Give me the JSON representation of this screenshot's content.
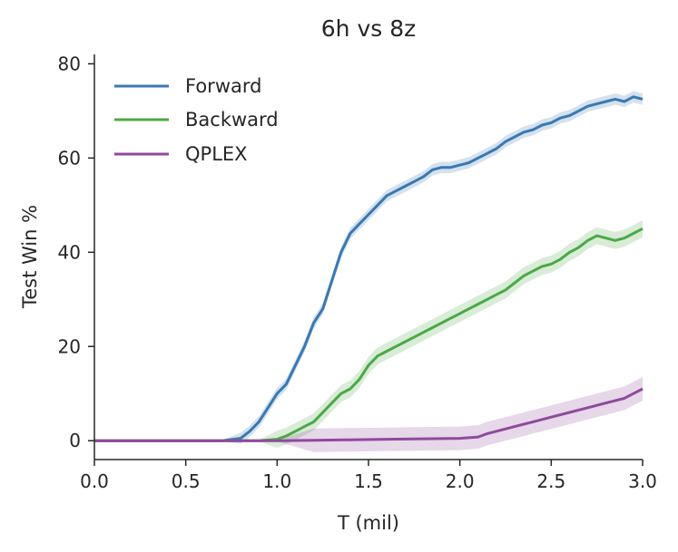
{
  "chart_data": {
    "type": "line",
    "title": "6h vs 8z",
    "xlabel": "T (mil)",
    "ylabel": "Test Win %",
    "xlim": [
      0,
      3.0
    ],
    "ylim": [
      -4,
      82
    ],
    "xticks": [
      0,
      0.5,
      1.0,
      1.5,
      2.0,
      2.5,
      3.0
    ],
    "xtick_labels": [
      "0.0",
      "0.5",
      "1.0",
      "1.5",
      "2.0",
      "2.5",
      "3.0"
    ],
    "yticks": [
      0,
      20,
      40,
      60,
      80
    ],
    "ytick_labels": [
      "0",
      "20",
      "40",
      "60",
      "80"
    ],
    "grid": false,
    "legend_position": "top-left",
    "series": [
      {
        "name": "Forward",
        "color": "#3a78b0",
        "x": [
          0,
          0.5,
          0.7,
          0.8,
          0.85,
          0.9,
          0.95,
          1.0,
          1.05,
          1.1,
          1.15,
          1.2,
          1.25,
          1.3,
          1.35,
          1.4,
          1.45,
          1.5,
          1.55,
          1.6,
          1.65,
          1.7,
          1.75,
          1.8,
          1.85,
          1.9,
          1.95,
          2.0,
          2.05,
          2.1,
          2.15,
          2.2,
          2.25,
          2.3,
          2.35,
          2.4,
          2.45,
          2.5,
          2.55,
          2.6,
          2.65,
          2.7,
          2.75,
          2.8,
          2.85,
          2.9,
          2.95,
          3.0
        ],
        "values": [
          0,
          0,
          0,
          0.5,
          2,
          4,
          7,
          10,
          12,
          16,
          20,
          25,
          28,
          34,
          40,
          44,
          46,
          48,
          50,
          52,
          53,
          54,
          55,
          56,
          57.5,
          58,
          58,
          58.5,
          59,
          60,
          61,
          62,
          63.5,
          64.5,
          65.5,
          66,
          67,
          67.5,
          68.5,
          69,
          70,
          71,
          71.5,
          72,
          72.5,
          72,
          73,
          72.5
        ],
        "band": 1.2
      },
      {
        "name": "Backward",
        "color": "#4ca847",
        "x": [
          0,
          0.9,
          1.0,
          1.05,
          1.1,
          1.15,
          1.2,
          1.25,
          1.3,
          1.35,
          1.4,
          1.45,
          1.5,
          1.55,
          1.6,
          1.65,
          1.7,
          1.75,
          1.8,
          1.85,
          1.9,
          1.95,
          2.0,
          2.05,
          2.1,
          2.15,
          2.2,
          2.25,
          2.3,
          2.35,
          2.4,
          2.45,
          2.5,
          2.55,
          2.6,
          2.65,
          2.7,
          2.75,
          2.8,
          2.85,
          2.9,
          2.95,
          3.0
        ],
        "values": [
          0,
          0,
          0.3,
          1,
          2,
          3,
          4,
          6,
          8,
          10,
          11,
          13,
          16,
          18,
          19,
          20,
          21,
          22,
          23,
          24,
          25,
          26,
          27,
          28,
          29,
          30,
          31,
          32,
          33.5,
          35,
          36,
          37,
          37.5,
          38.5,
          40,
          41,
          42.5,
          43.5,
          43,
          42.5,
          43,
          44,
          45
        ],
        "band": 1.8
      },
      {
        "name": "QPLEX",
        "color": "#8f4a9c",
        "x": [
          0,
          0.5,
          1.0,
          1.2,
          1.4,
          1.6,
          1.8,
          2.0,
          2.1,
          2.15,
          2.2,
          2.3,
          2.4,
          2.5,
          2.6,
          2.7,
          2.8,
          2.9,
          2.95,
          3.0
        ],
        "values": [
          0,
          0,
          0,
          0.1,
          0.2,
          0.3,
          0.4,
          0.5,
          0.8,
          1.5,
          2,
          3,
          4,
          5,
          6,
          7,
          8,
          9,
          10,
          11
        ],
        "band": 2.5
      }
    ]
  }
}
